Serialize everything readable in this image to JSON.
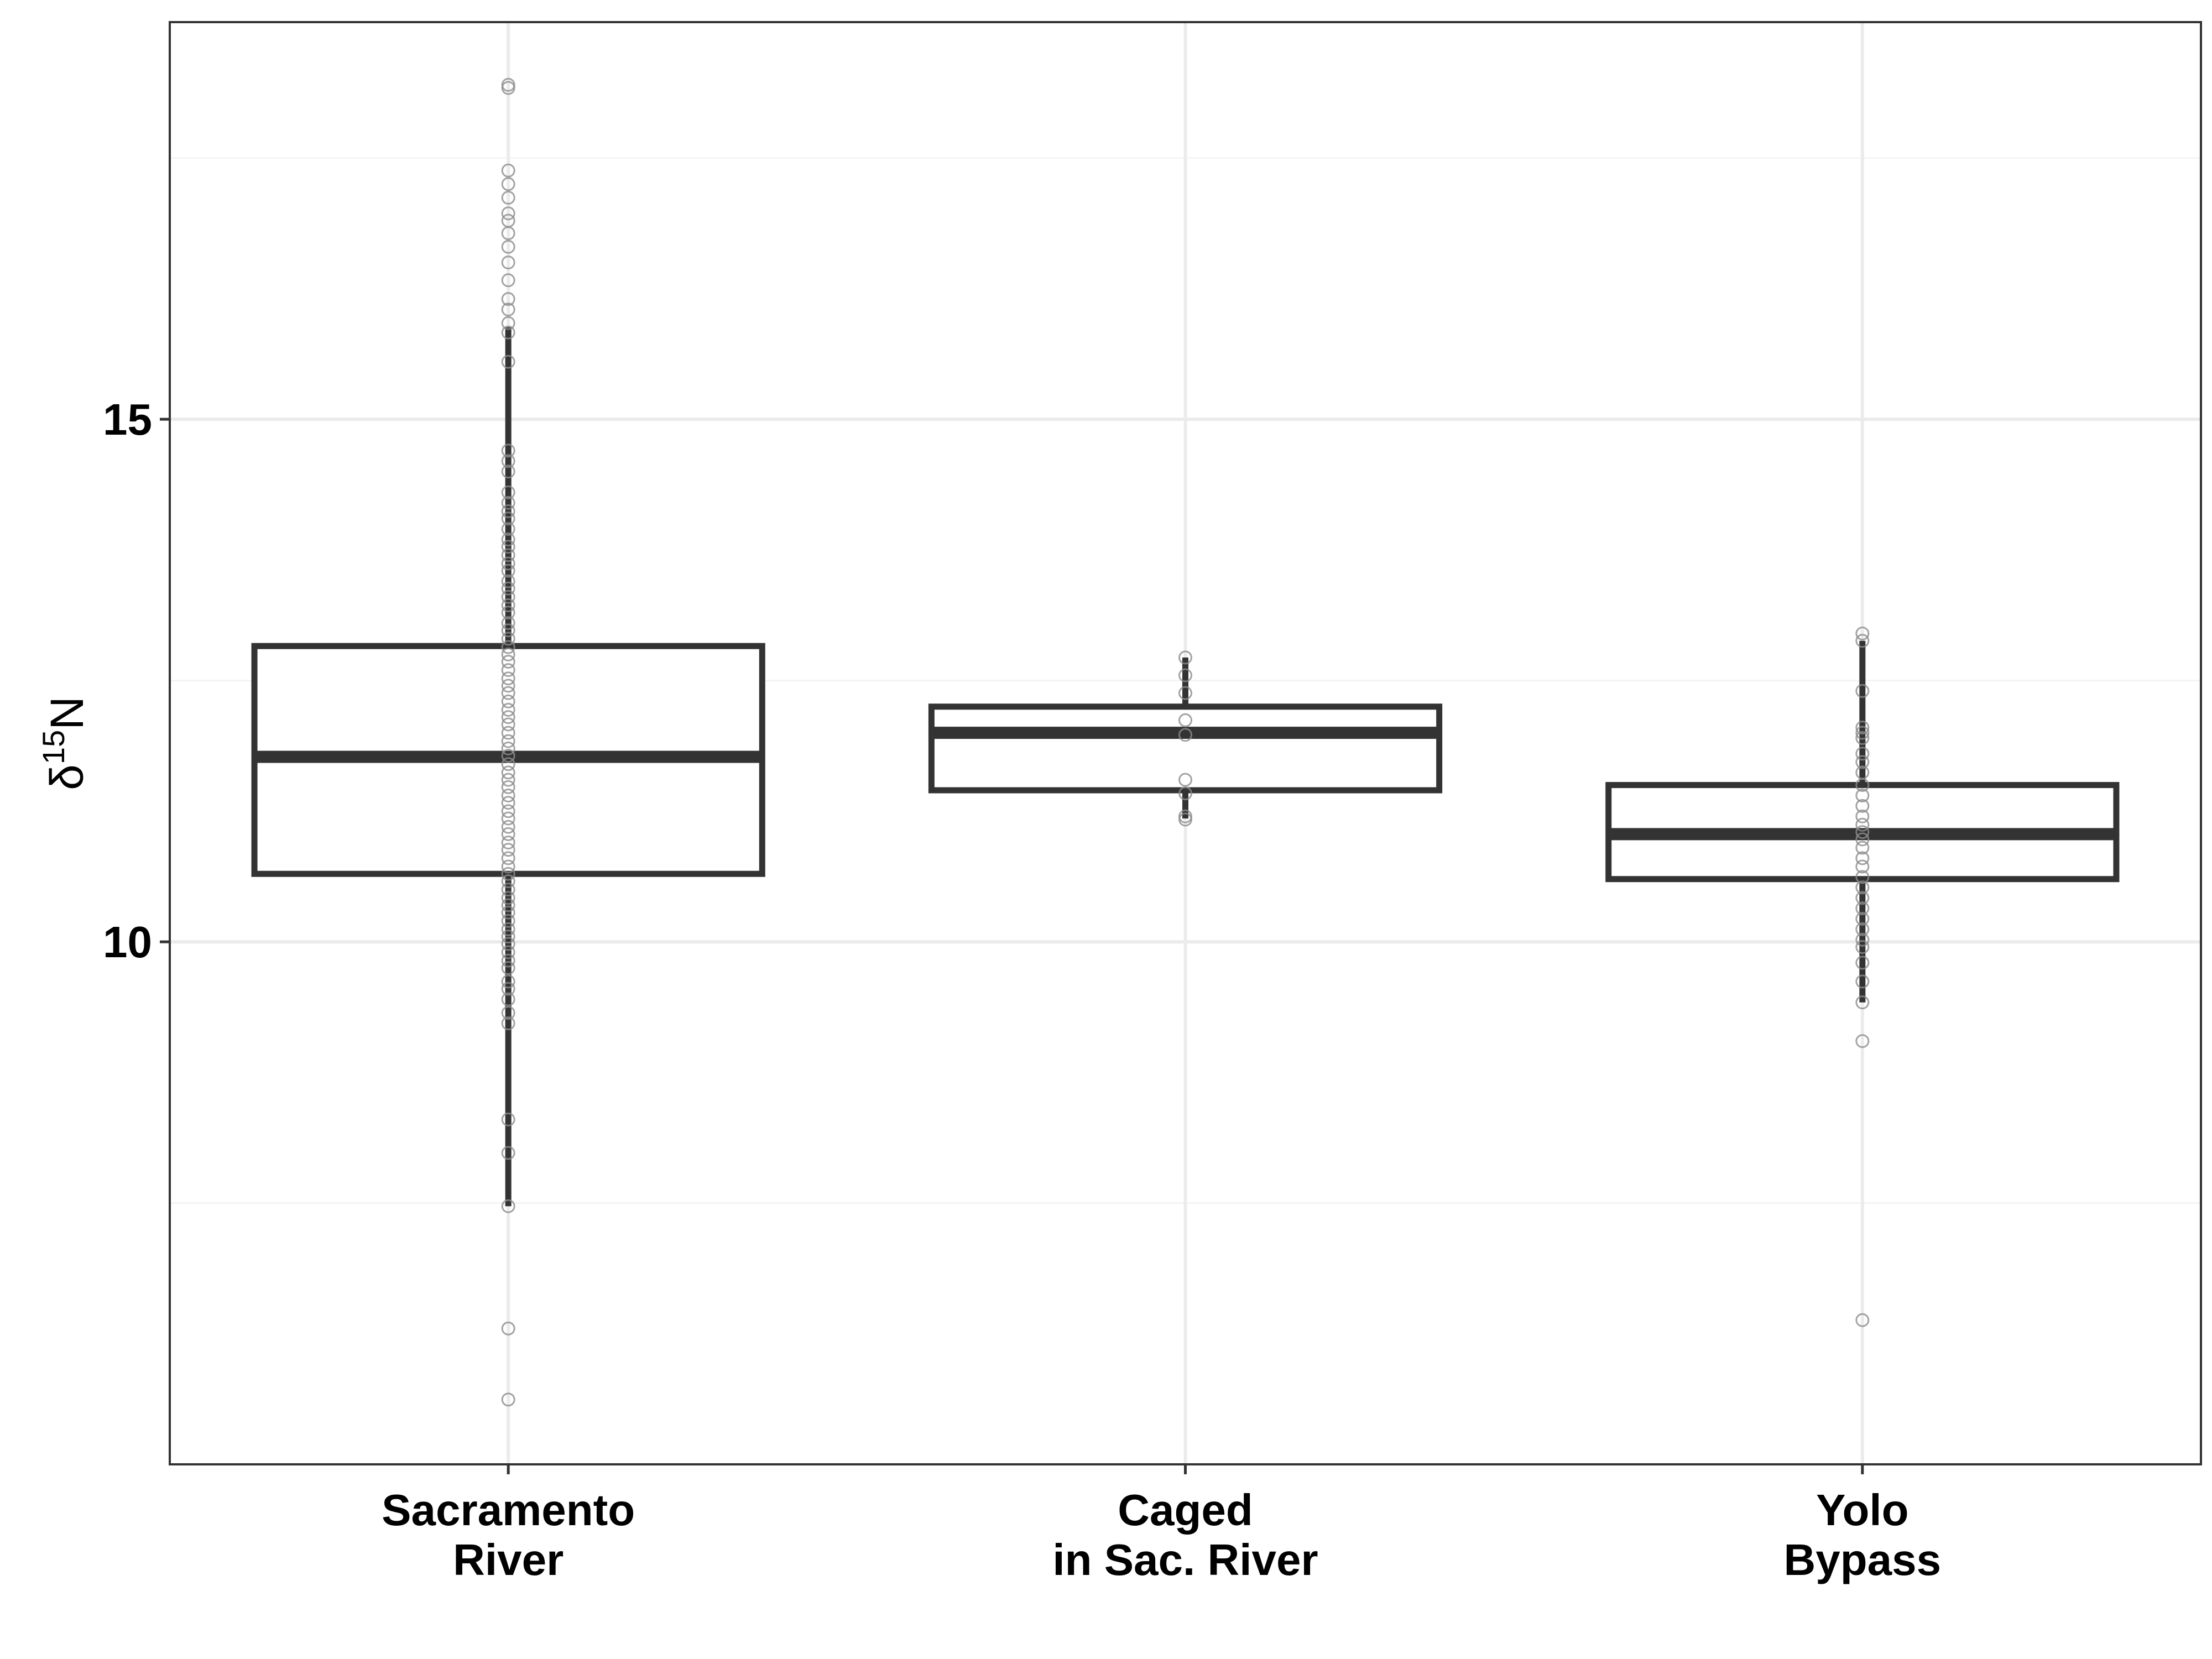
{
  "chart_data": {
    "type": "boxplot",
    "title": "",
    "xlabel": "",
    "ylabel": {
      "base": "δ",
      "superscript": "15",
      "element": "N"
    },
    "ylim": [
      5.0,
      18.8
    ],
    "y_ticks": [
      {
        "value": 10,
        "label": "10"
      },
      {
        "value": 15,
        "label": "15"
      }
    ],
    "y_minor_gridlines": [
      7.5,
      12.5,
      17.5
    ],
    "grid": true,
    "legend": "none",
    "colors": {
      "box_stroke": "#333333",
      "point_stroke": "#8c8c8c",
      "grid_major": "#ebebeb",
      "grid_minor": "#f4f4f4",
      "panel_border": "#333333"
    },
    "categories": [
      {
        "name": "Sacramento River",
        "label_lines": [
          "Sacramento",
          "River"
        ],
        "q1": 10.65,
        "median": 11.77,
        "q3": 12.83,
        "whisker_low": 7.47,
        "whisker_high": 15.88,
        "points": [
          18.2,
          18.17,
          17.38,
          17.25,
          17.12,
          16.97,
          16.9,
          16.78,
          16.65,
          16.5,
          16.33,
          16.15,
          16.05,
          15.92,
          15.83,
          15.55,
          14.7,
          14.6,
          14.5,
          14.3,
          14.2,
          14.12,
          14.05,
          13.95,
          13.85,
          13.78,
          13.7,
          13.62,
          13.55,
          13.45,
          13.38,
          13.3,
          13.22,
          13.15,
          13.05,
          12.98,
          12.9,
          12.82,
          12.75,
          12.68,
          12.6,
          12.52,
          12.45,
          12.38,
          12.3,
          12.22,
          12.15,
          12.08,
          12.0,
          11.92,
          11.85,
          11.78,
          11.7,
          11.62,
          11.55,
          11.48,
          11.4,
          11.33,
          11.25,
          11.18,
          11.1,
          11.03,
          10.95,
          10.88,
          10.8,
          10.72,
          10.65,
          10.58,
          10.5,
          10.42,
          10.35,
          10.28,
          10.2,
          10.12,
          10.05,
          9.98,
          9.9,
          9.82,
          9.75,
          9.62,
          9.55,
          9.45,
          9.32,
          9.22,
          8.3,
          7.98,
          7.47,
          6.3,
          5.62
        ]
      },
      {
        "name": "Caged in Sac. River",
        "label_lines": [
          "Caged",
          "in Sac. River"
        ],
        "q1": 11.45,
        "median": 12.0,
        "q3": 12.25,
        "whisker_low": 11.18,
        "whisker_high": 12.72,
        "points": [
          12.72,
          12.55,
          12.38,
          12.12,
          11.98,
          11.55,
          11.42,
          11.2,
          11.17
        ]
      },
      {
        "name": "Yolo Bypass",
        "label_lines": [
          "Yolo",
          "Bypass"
        ],
        "q1": 10.6,
        "median": 11.03,
        "q3": 11.5,
        "whisker_low": 9.42,
        "whisker_high": 12.88,
        "points": [
          12.95,
          12.88,
          12.4,
          12.05,
          12.0,
          11.95,
          11.8,
          11.72,
          11.62,
          11.5,
          11.4,
          11.3,
          11.2,
          11.12,
          11.05,
          10.98,
          10.9,
          10.8,
          10.72,
          10.62,
          10.52,
          10.42,
          10.32,
          10.22,
          10.12,
          10.02,
          9.95,
          9.8,
          9.62,
          9.42,
          9.05,
          6.38
        ]
      }
    ]
  }
}
